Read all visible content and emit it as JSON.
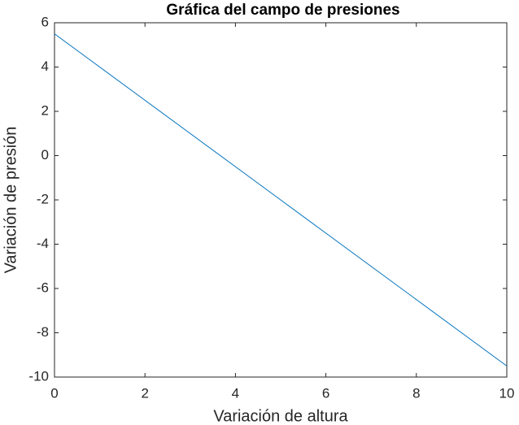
{
  "chart_data": {
    "type": "line",
    "title": "Gráfica del campo de presiones",
    "x_label": "Variación de altura",
    "y_label": "Variación de presión",
    "x": [
      0,
      1,
      2,
      3,
      4,
      5,
      6,
      7,
      8,
      9,
      10
    ],
    "series": [
      {
        "color": "#0072bd",
        "values": [
          5.5,
          4,
          2.5,
          1,
          -0.5,
          -2,
          -3.5,
          -5,
          -6.5,
          -8,
          -9.5
        ]
      }
    ],
    "xlim": [
      0,
      10
    ],
    "xticks": [
      0,
      2,
      4,
      6,
      8,
      10
    ],
    "ylim": [
      -10,
      6
    ],
    "yticks": [
      -10,
      -8,
      -6,
      -4,
      -2,
      0,
      2,
      4,
      6
    ],
    "grid": false
  }
}
